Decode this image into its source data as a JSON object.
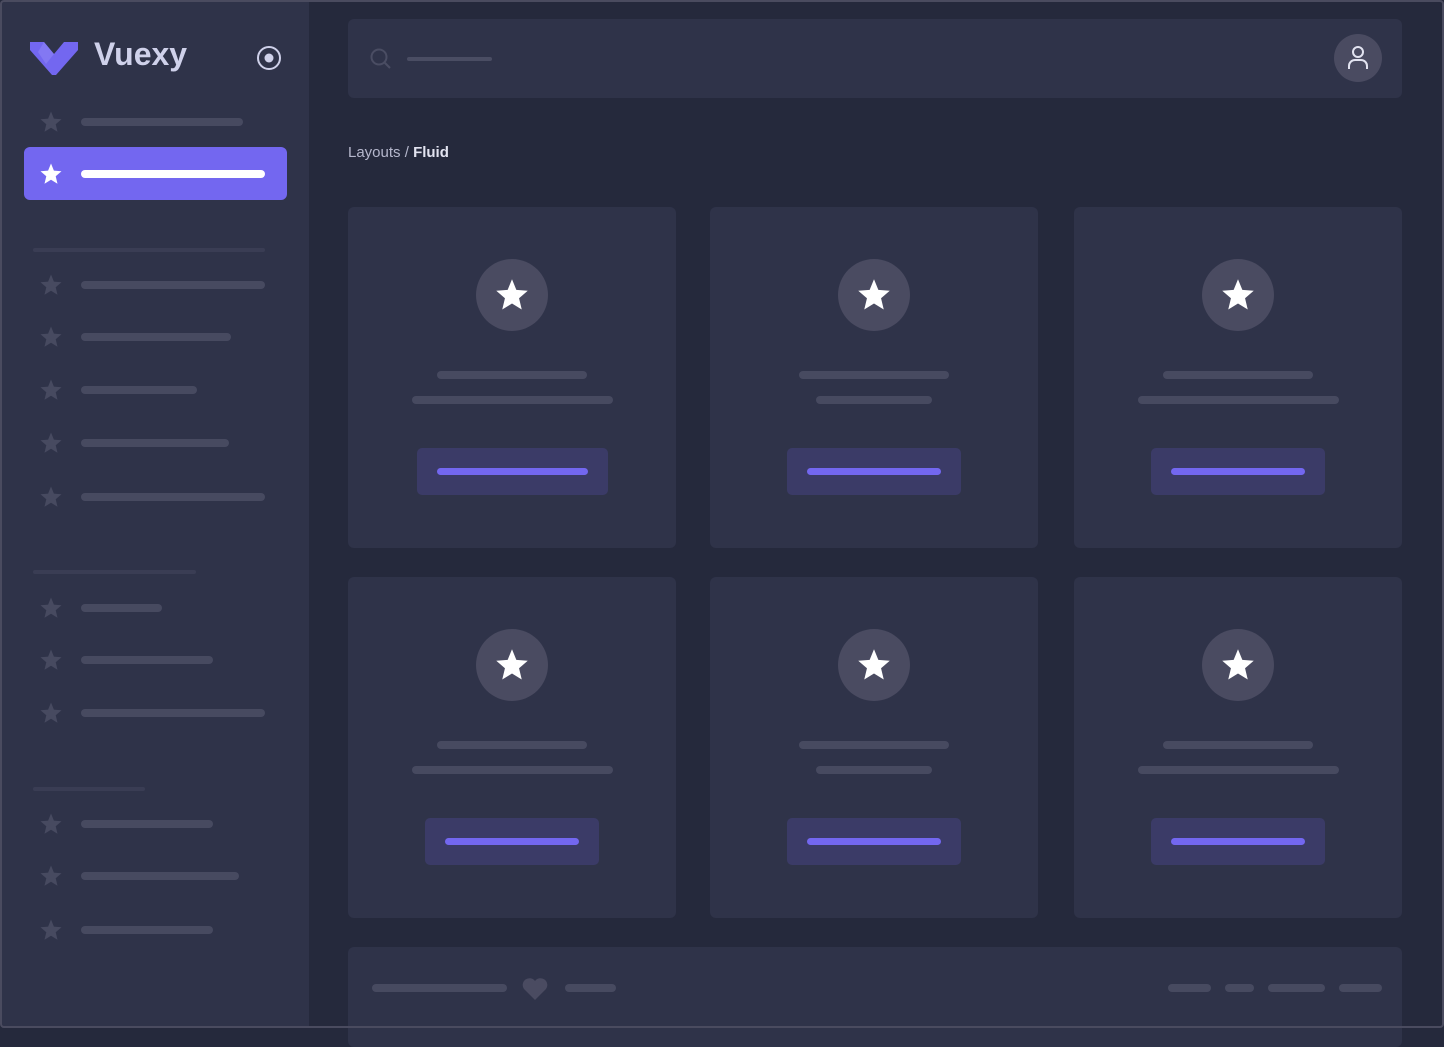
{
  "brand": {
    "name": "Vuexy",
    "accent": "#7367f0"
  },
  "sidebar": {
    "toggle_icon": "radio-circle-icon",
    "items_icon": "star-icon",
    "active_index": 1
  },
  "navbar": {
    "search_icon": "search-icon",
    "avatar_icon": "user-icon"
  },
  "breadcrumb": {
    "parent": "Layouts",
    "separator": " / ",
    "current": "Fluid"
  },
  "footer": {
    "icon": "heart-icon"
  }
}
